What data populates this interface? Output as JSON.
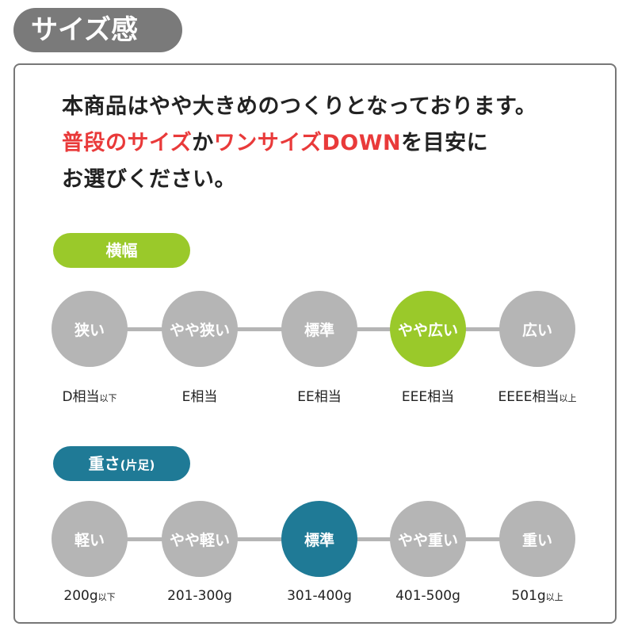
{
  "title": "サイズ感",
  "intro": {
    "line1": "本商品はやや大きめのつくりとなっております。",
    "line2_red1": "普段のサイズ",
    "line2_mid": "か",
    "line2_red2": "ワンサイズDOWN",
    "line2_end": "を目安に",
    "line3": "お選びください。"
  },
  "colors": {
    "inactive": "#b5b5b5",
    "width_active": "#9ac92a",
    "weight_active": "#1f7a96",
    "accent_red": "#e93a3a"
  },
  "width": {
    "label": "横幅",
    "active_index": 3,
    "steps": [
      {
        "name": "狭い",
        "label": "D相当",
        "suffix": "以下"
      },
      {
        "name": "やや狭い",
        "label": "E相当",
        "suffix": ""
      },
      {
        "name": "標準",
        "label": "EE相当",
        "suffix": ""
      },
      {
        "name": "やや広い",
        "label": "EEE相当",
        "suffix": ""
      },
      {
        "name": "広い",
        "label": "EEEE相当",
        "suffix": "以上"
      }
    ]
  },
  "weight": {
    "label": "重さ",
    "label_note": "(片足)",
    "active_index": 2,
    "steps": [
      {
        "name": "軽い",
        "label": "200g",
        "suffix": "以下"
      },
      {
        "name": "やや軽い",
        "label": "201-300g",
        "suffix": ""
      },
      {
        "name": "標準",
        "label": "301-400g",
        "suffix": ""
      },
      {
        "name": "やや重い",
        "label": "401-500g",
        "suffix": ""
      },
      {
        "name": "重い",
        "label": "501g",
        "suffix": "以上"
      }
    ]
  }
}
